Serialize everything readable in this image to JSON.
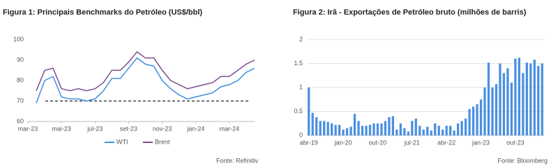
{
  "chart_data": [
    {
      "type": "line",
      "title": "Figura 1: Principais Benchmarks do Petróleo (US$/bbl)",
      "categories": [
        "mar-23",
        null,
        null,
        null,
        "mai-23",
        null,
        null,
        null,
        "jul-23",
        null,
        null,
        null,
        "set-23",
        null,
        null,
        null,
        "nov-23",
        null,
        null,
        null,
        "jan-24",
        null,
        null,
        null,
        "mar-24",
        null,
        null,
        null
      ],
      "series": [
        {
          "name": "WTI",
          "color": "#3b8ee0",
          "values": [
            null,
            69,
            80,
            82,
            72,
            71,
            71,
            70,
            71,
            75,
            81,
            81,
            86,
            91,
            88,
            87,
            80,
            76,
            73,
            71,
            72,
            73,
            74,
            77,
            78,
            80,
            84,
            86
          ]
        },
        {
          "name": "Brent",
          "color": "#7b4f8e",
          "values": [
            null,
            75,
            85,
            86,
            76,
            75,
            76,
            75,
            76,
            79,
            85,
            85,
            89,
            94,
            91,
            91,
            85,
            80,
            78,
            76,
            77,
            78,
            79,
            82,
            82,
            85,
            88,
            90
          ]
        }
      ],
      "reference_line": 70,
      "ylim": [
        60,
        100
      ],
      "yticks": [
        60,
        70,
        80,
        90,
        100
      ],
      "grid": false,
      "legend": "bottom",
      "source": "Fonte: Refinitiv"
    },
    {
      "type": "bar",
      "title": "Figura 2: Irã - Exportações de Petróleo bruto (milhões de barris)",
      "categories": [
        "abr-19",
        null,
        null,
        null,
        null,
        null,
        null,
        null,
        null,
        "jan-20",
        null,
        null,
        null,
        null,
        null,
        null,
        null,
        null,
        "out-20",
        null,
        null,
        null,
        null,
        null,
        null,
        null,
        null,
        "jul-21",
        null,
        null,
        null,
        null,
        null,
        null,
        null,
        null,
        "abr-22",
        null,
        null,
        null,
        null,
        null,
        null,
        null,
        null,
        "jan-23",
        null,
        null,
        null,
        null,
        null,
        null,
        null,
        null,
        "out-23",
        null,
        null,
        null,
        null,
        null,
        null,
        null
      ],
      "values": [
        1.0,
        0.47,
        0.38,
        0.3,
        0.3,
        0.28,
        0.25,
        0.22,
        0.22,
        0.12,
        0.15,
        0.18,
        0.45,
        0.3,
        0.2,
        0.2,
        0.22,
        0.25,
        0.25,
        0.25,
        0.3,
        0.38,
        0.4,
        0.12,
        0.25,
        0.15,
        0.08,
        0.3,
        0.35,
        0.2,
        0.12,
        0.18,
        0.1,
        0.25,
        0.2,
        0.12,
        0.2,
        0.2,
        0.1,
        0.25,
        0.3,
        0.35,
        0.55,
        0.6,
        0.65,
        0.75,
        1.0,
        1.52,
        1.0,
        1.07,
        1.5,
        1.3,
        1.4,
        1.1,
        1.6,
        1.62,
        1.3,
        1.52,
        1.5,
        1.58,
        1.45,
        1.5
      ],
      "color": "#4a90e2",
      "ylim": [
        0,
        2
      ],
      "yticks": [
        0,
        0.5,
        1,
        1.5,
        2
      ],
      "grid": true,
      "source": "Fonte: Bloomberg"
    }
  ]
}
